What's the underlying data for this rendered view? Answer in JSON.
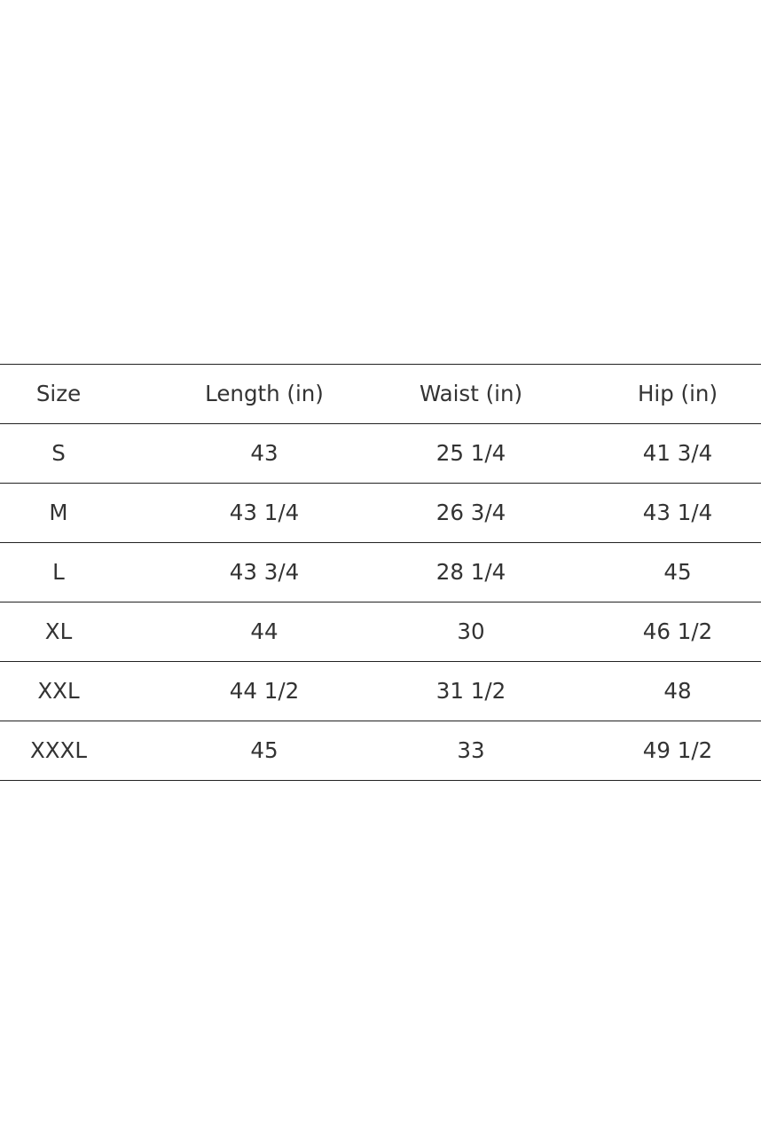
{
  "table": {
    "headers": [
      "Size",
      "Length (in)",
      "Waist (in)",
      "Hip (in)"
    ],
    "rows": [
      [
        "S",
        "43",
        "25 1/4",
        "41 3/4"
      ],
      [
        "M",
        "43 1/4",
        "26 3/4",
        "43 1/4"
      ],
      [
        "L",
        "43 3/4",
        "28 1/4",
        "45"
      ],
      [
        "XL",
        "44",
        "30",
        "46 1/2"
      ],
      [
        "XXL",
        "44 1/2",
        "31 1/2",
        "48"
      ],
      [
        "XXXL",
        "45",
        "33",
        "49 1/2"
      ]
    ]
  }
}
